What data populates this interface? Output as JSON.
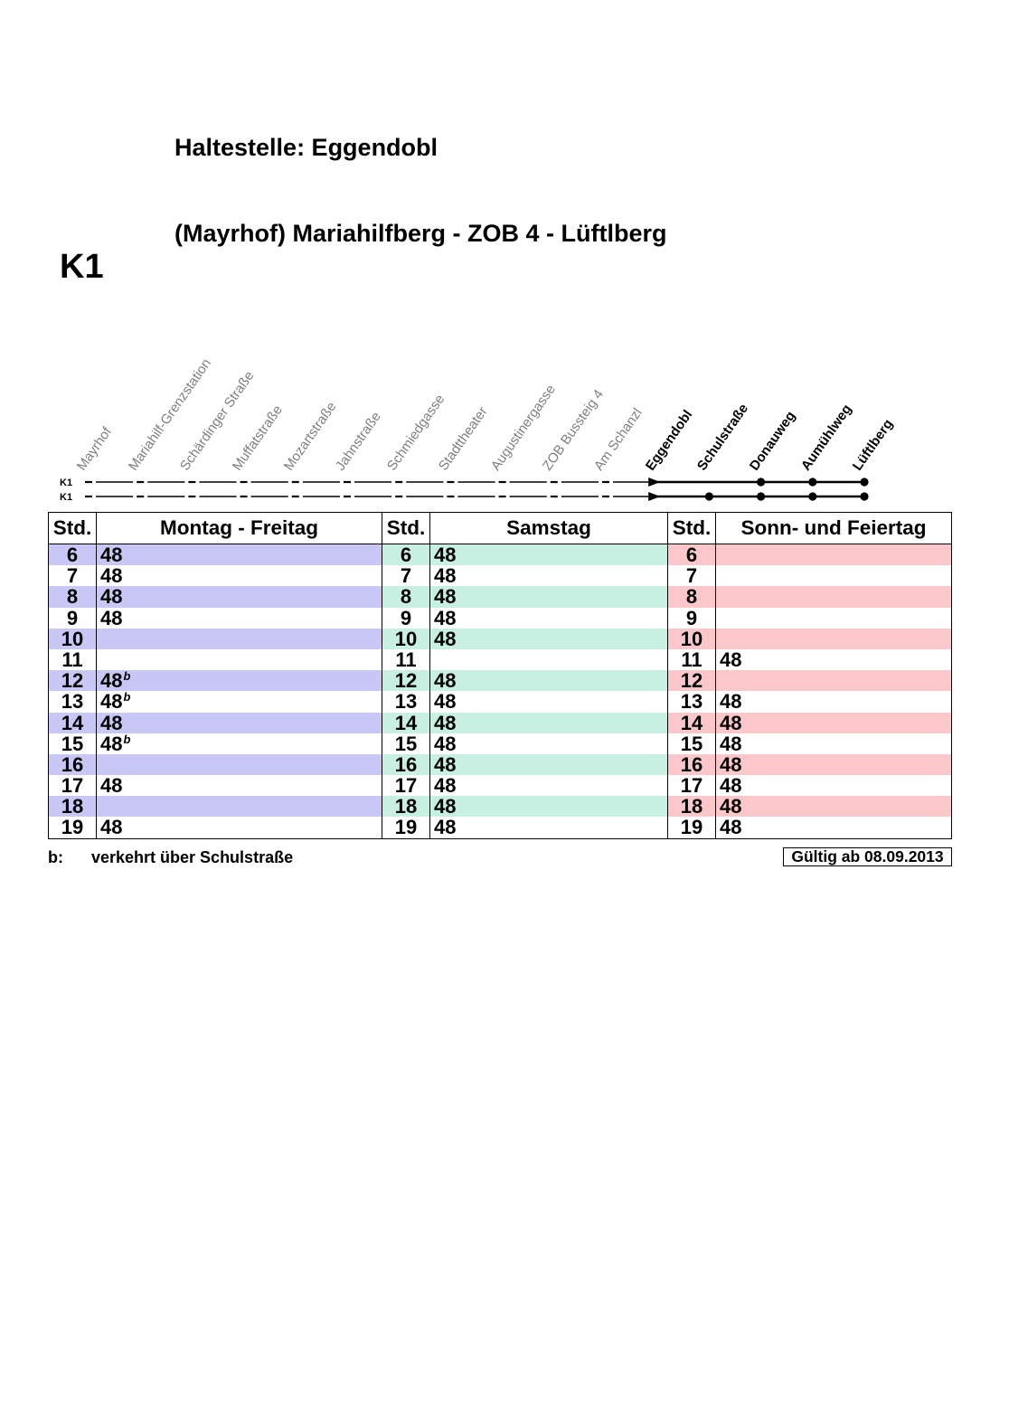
{
  "stop_heading": "Haltestelle: Eggendobl",
  "route_title": "(Mayrhof) Mariahilfberg - ZOB 4 - Lüftlberg",
  "line_number": "K1",
  "route_diagram": {
    "previous_stops": [
      "Mayrhof",
      "Mariahilf-Grenzstation",
      "Schärdinger Straße",
      "Muffatstraße",
      "Mozartstraße",
      "Jahnstraße",
      "Schmiedgasse",
      "Stadttheater",
      "Augustinergasse",
      "ZOB Bussteig 4",
      "Am Schanzl"
    ],
    "current_stop": "Eggendobl",
    "next_stops": [
      "Schulstraße",
      "Donauweg",
      "Aumühlweg",
      "Lüftlberg"
    ],
    "lines": [
      {
        "label": "K1",
        "serves_next": [
          false,
          true,
          true,
          true
        ]
      },
      {
        "label": "K1",
        "serves_next": [
          true,
          true,
          true,
          true
        ]
      }
    ]
  },
  "timetable": {
    "headers": {
      "hour": "Std.",
      "weekday": "Montag - Freitag",
      "saturday": "Samstag",
      "sunday": "Sonn- und Feiertag"
    },
    "rows": [
      {
        "hour": "6",
        "weekday": "48",
        "saturday": "48",
        "sunday": ""
      },
      {
        "hour": "7",
        "weekday": "48",
        "saturday": "48",
        "sunday": ""
      },
      {
        "hour": "8",
        "weekday": "48",
        "saturday": "48",
        "sunday": ""
      },
      {
        "hour": "9",
        "weekday": "48",
        "saturday": "48",
        "sunday": ""
      },
      {
        "hour": "10",
        "weekday": "",
        "saturday": "48",
        "sunday": ""
      },
      {
        "hour": "11",
        "weekday": "",
        "saturday": "",
        "sunday": "48"
      },
      {
        "hour": "12",
        "weekday": "48",
        "weekday_note": "b",
        "saturday": "48",
        "sunday": ""
      },
      {
        "hour": "13",
        "weekday": "48",
        "weekday_note": "b",
        "saturday": "48",
        "sunday": "48"
      },
      {
        "hour": "14",
        "weekday": "48",
        "saturday": "48",
        "sunday": "48"
      },
      {
        "hour": "15",
        "weekday": "48",
        "weekday_note": "b",
        "saturday": "48",
        "sunday": "48"
      },
      {
        "hour": "16",
        "weekday": "",
        "saturday": "48",
        "sunday": "48"
      },
      {
        "hour": "17",
        "weekday": "48",
        "saturday": "48",
        "sunday": "48"
      },
      {
        "hour": "18",
        "weekday": "",
        "saturday": "48",
        "sunday": "48"
      },
      {
        "hour": "19",
        "weekday": "48",
        "saturday": "48",
        "sunday": "48"
      }
    ]
  },
  "footnote": {
    "key": "b:",
    "text": "verkehrt über Schulstraße"
  },
  "valid_from": "Gültig ab 08.09.2013",
  "colors": {
    "weekday_band": "#c9c7f6",
    "saturday_band": "#c7efe2",
    "sunday_band": "#fbc7ca",
    "previous_stop_label": "#7f7f7f"
  }
}
